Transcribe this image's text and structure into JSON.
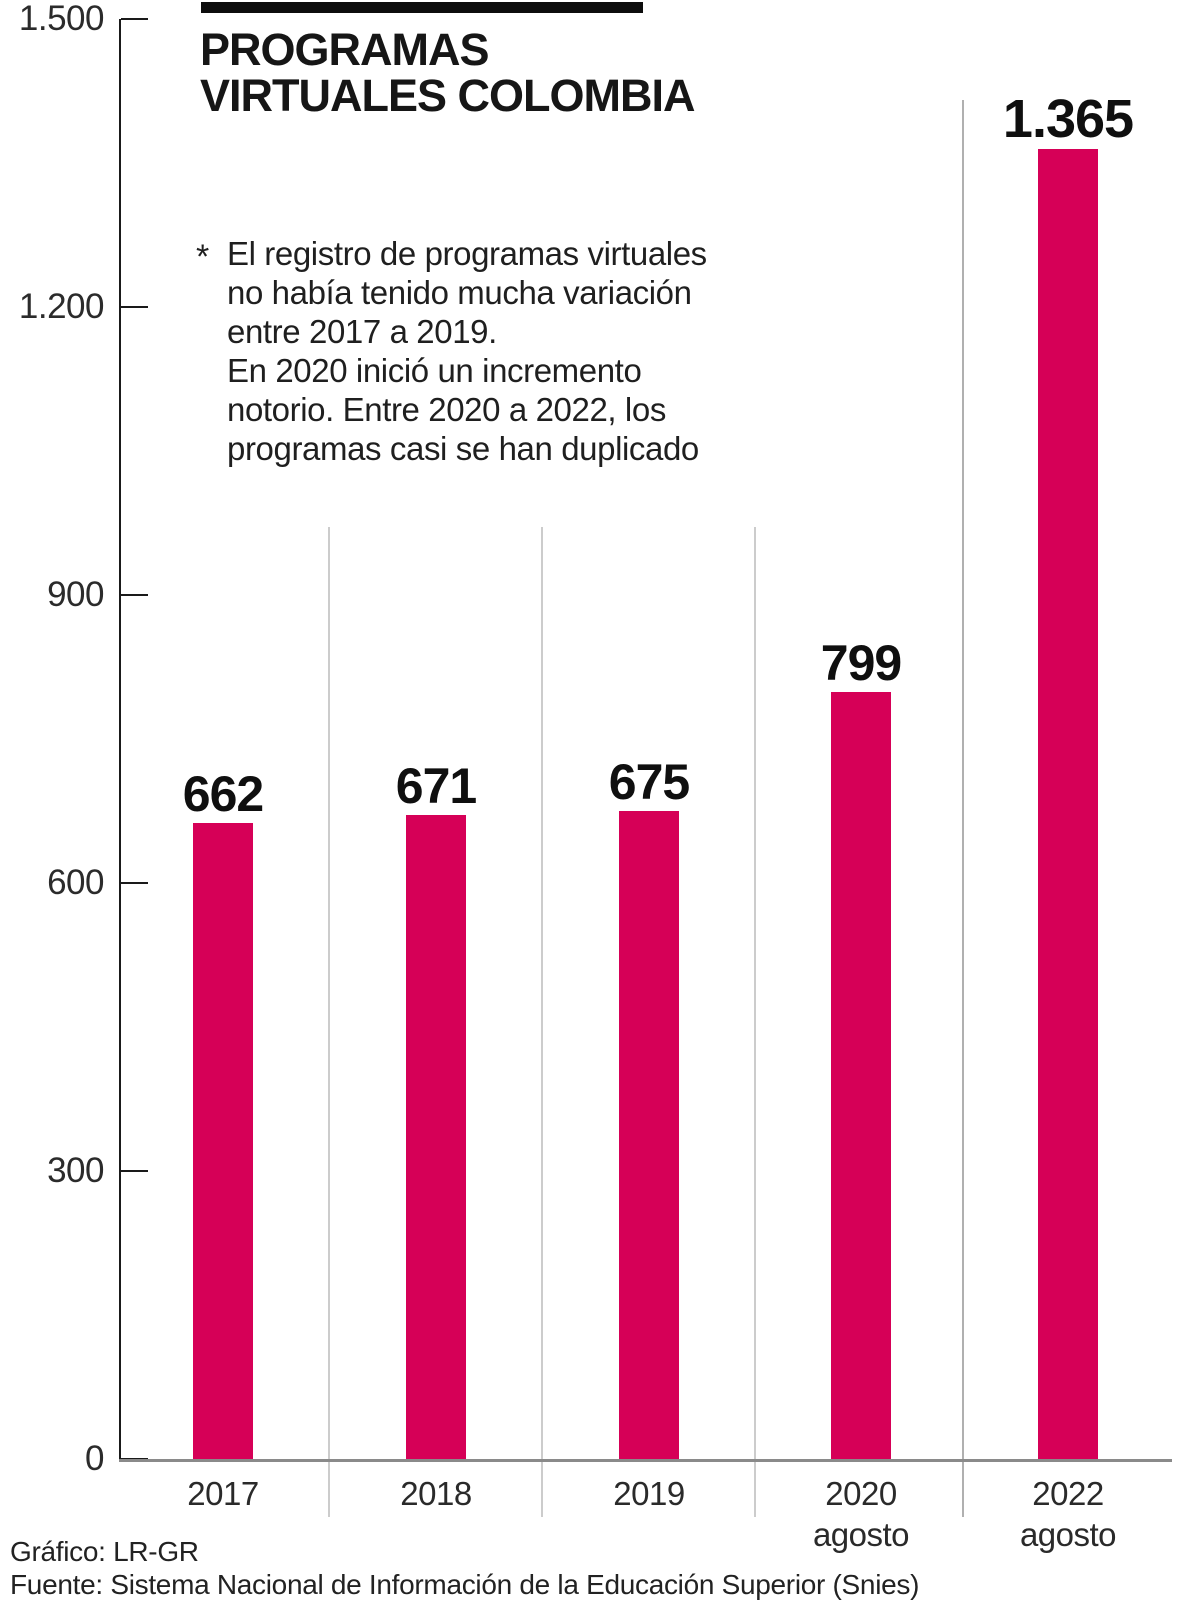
{
  "header": {
    "title_line1": "PROGRAMAS",
    "title_line2": "VIRTUALES COLOMBIA"
  },
  "annotation": {
    "marker": "*",
    "lines": [
      "El registro de programas virtuales",
      "no había tenido mucha variación",
      "entre 2017 a 2019.",
      "En 2020 inició un incremento",
      "notorio. Entre 2020 a 2022, los",
      "programas casi se han duplicado"
    ]
  },
  "footer": {
    "credit": "Gráfico: LR-GR",
    "source": "Fuente: Sistema Nacional de Información de la Educación Superior (Snies)"
  },
  "chart_data": {
    "type": "bar",
    "title": "PROGRAMAS VIRTUALES COLOMBIA",
    "categories": [
      "2017",
      "2018",
      "2019",
      "2020 agosto",
      "2022 agosto"
    ],
    "category_lines": [
      [
        "2017"
      ],
      [
        "2018"
      ],
      [
        "2019"
      ],
      [
        "2020",
        "agosto"
      ],
      [
        "2022",
        "agosto"
      ]
    ],
    "values": [
      662,
      671,
      675,
      799,
      1365
    ],
    "value_labels": [
      "662",
      "671",
      "675",
      "799",
      "1.365"
    ],
    "ylim": [
      0,
      1500
    ],
    "yticks": [
      0,
      300,
      600,
      900,
      1200,
      1500
    ],
    "ytick_labels": [
      "0",
      "300",
      "600",
      "900",
      "1.200",
      "1.500"
    ],
    "bar_color": "#d60057",
    "axis_color": "#1a1a1a",
    "baseline_color": "#8a8a8a",
    "gridline_color": "#cccccc",
    "separator_color": "#b0b0b0",
    "grid": "vertical category separators, tall separator before 2022",
    "legend": "none"
  }
}
